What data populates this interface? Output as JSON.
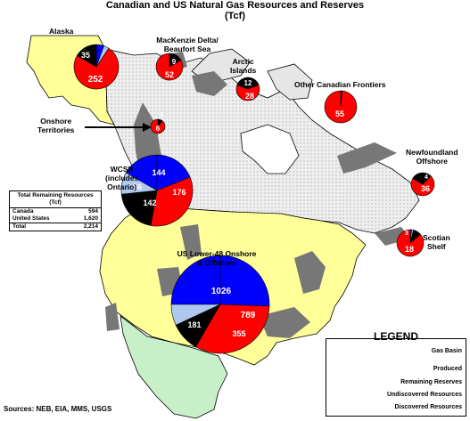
{
  "title_line1": "Canadian and US Natural Gas Resources and Reserves",
  "title_line2": "(Tcf)",
  "regions": {
    "alaska": {
      "label": "Alaska",
      "values": [
        "35",
        "8",
        "11",
        "252"
      ]
    },
    "mackenzie": {
      "label": "MacKenzie Delta/\nBeaufort Sea",
      "values": [
        "9",
        "52"
      ]
    },
    "arctic": {
      "label": "Arctic\nIslands",
      "values": [
        "12",
        "28"
      ]
    },
    "other_canadian": {
      "label": "Other Canadian Frontiers",
      "values": [
        "1",
        "55"
      ]
    },
    "onshore_territories": {
      "label": "Onshore\nTerritories",
      "values": [
        "1",
        "6"
      ]
    },
    "newfoundland": {
      "label": "Newfoundland\nOffshore",
      "values": [
        "4",
        "36"
      ]
    },
    "wcsb": {
      "label": "WCSB\n(includes\nOntario)",
      "values": [
        "144",
        "56",
        "142",
        "176"
      ]
    },
    "scotian": {
      "label": "Scotian\nShelf",
      "values": [
        "3",
        "1",
        "1",
        "18"
      ]
    },
    "us_lower48": {
      "label": "US Lower-48 Onshore\n& Offshore",
      "values": [
        "1026",
        "181",
        "355",
        "789"
      ]
    }
  },
  "total_table": {
    "header": "Total Remaining Resources (Tcf)",
    "rows": [
      {
        "name": "Canada",
        "value": "594"
      },
      {
        "name": "United States",
        "value": "1,620"
      }
    ],
    "total": {
      "name": "Total",
      "value": "2,214"
    }
  },
  "legend": {
    "title": "LEGEND",
    "items": [
      "Gas Basin",
      "Produced",
      "Remaining Reserves",
      "Undiscovered Resources",
      "Discovered Resources"
    ]
  },
  "sources": "Sources: NEB, EIA, MMS, USGS",
  "colors": {
    "produced": "#0000ff",
    "remaining_reserves": "#aec8f0",
    "undiscovered": "#ff0000",
    "discovered": "#000000",
    "gas_basin": "#777777",
    "us_land": "#ffff99",
    "canada_land": "#e6e6e6",
    "mexico_land": "#c8f0c8"
  }
}
